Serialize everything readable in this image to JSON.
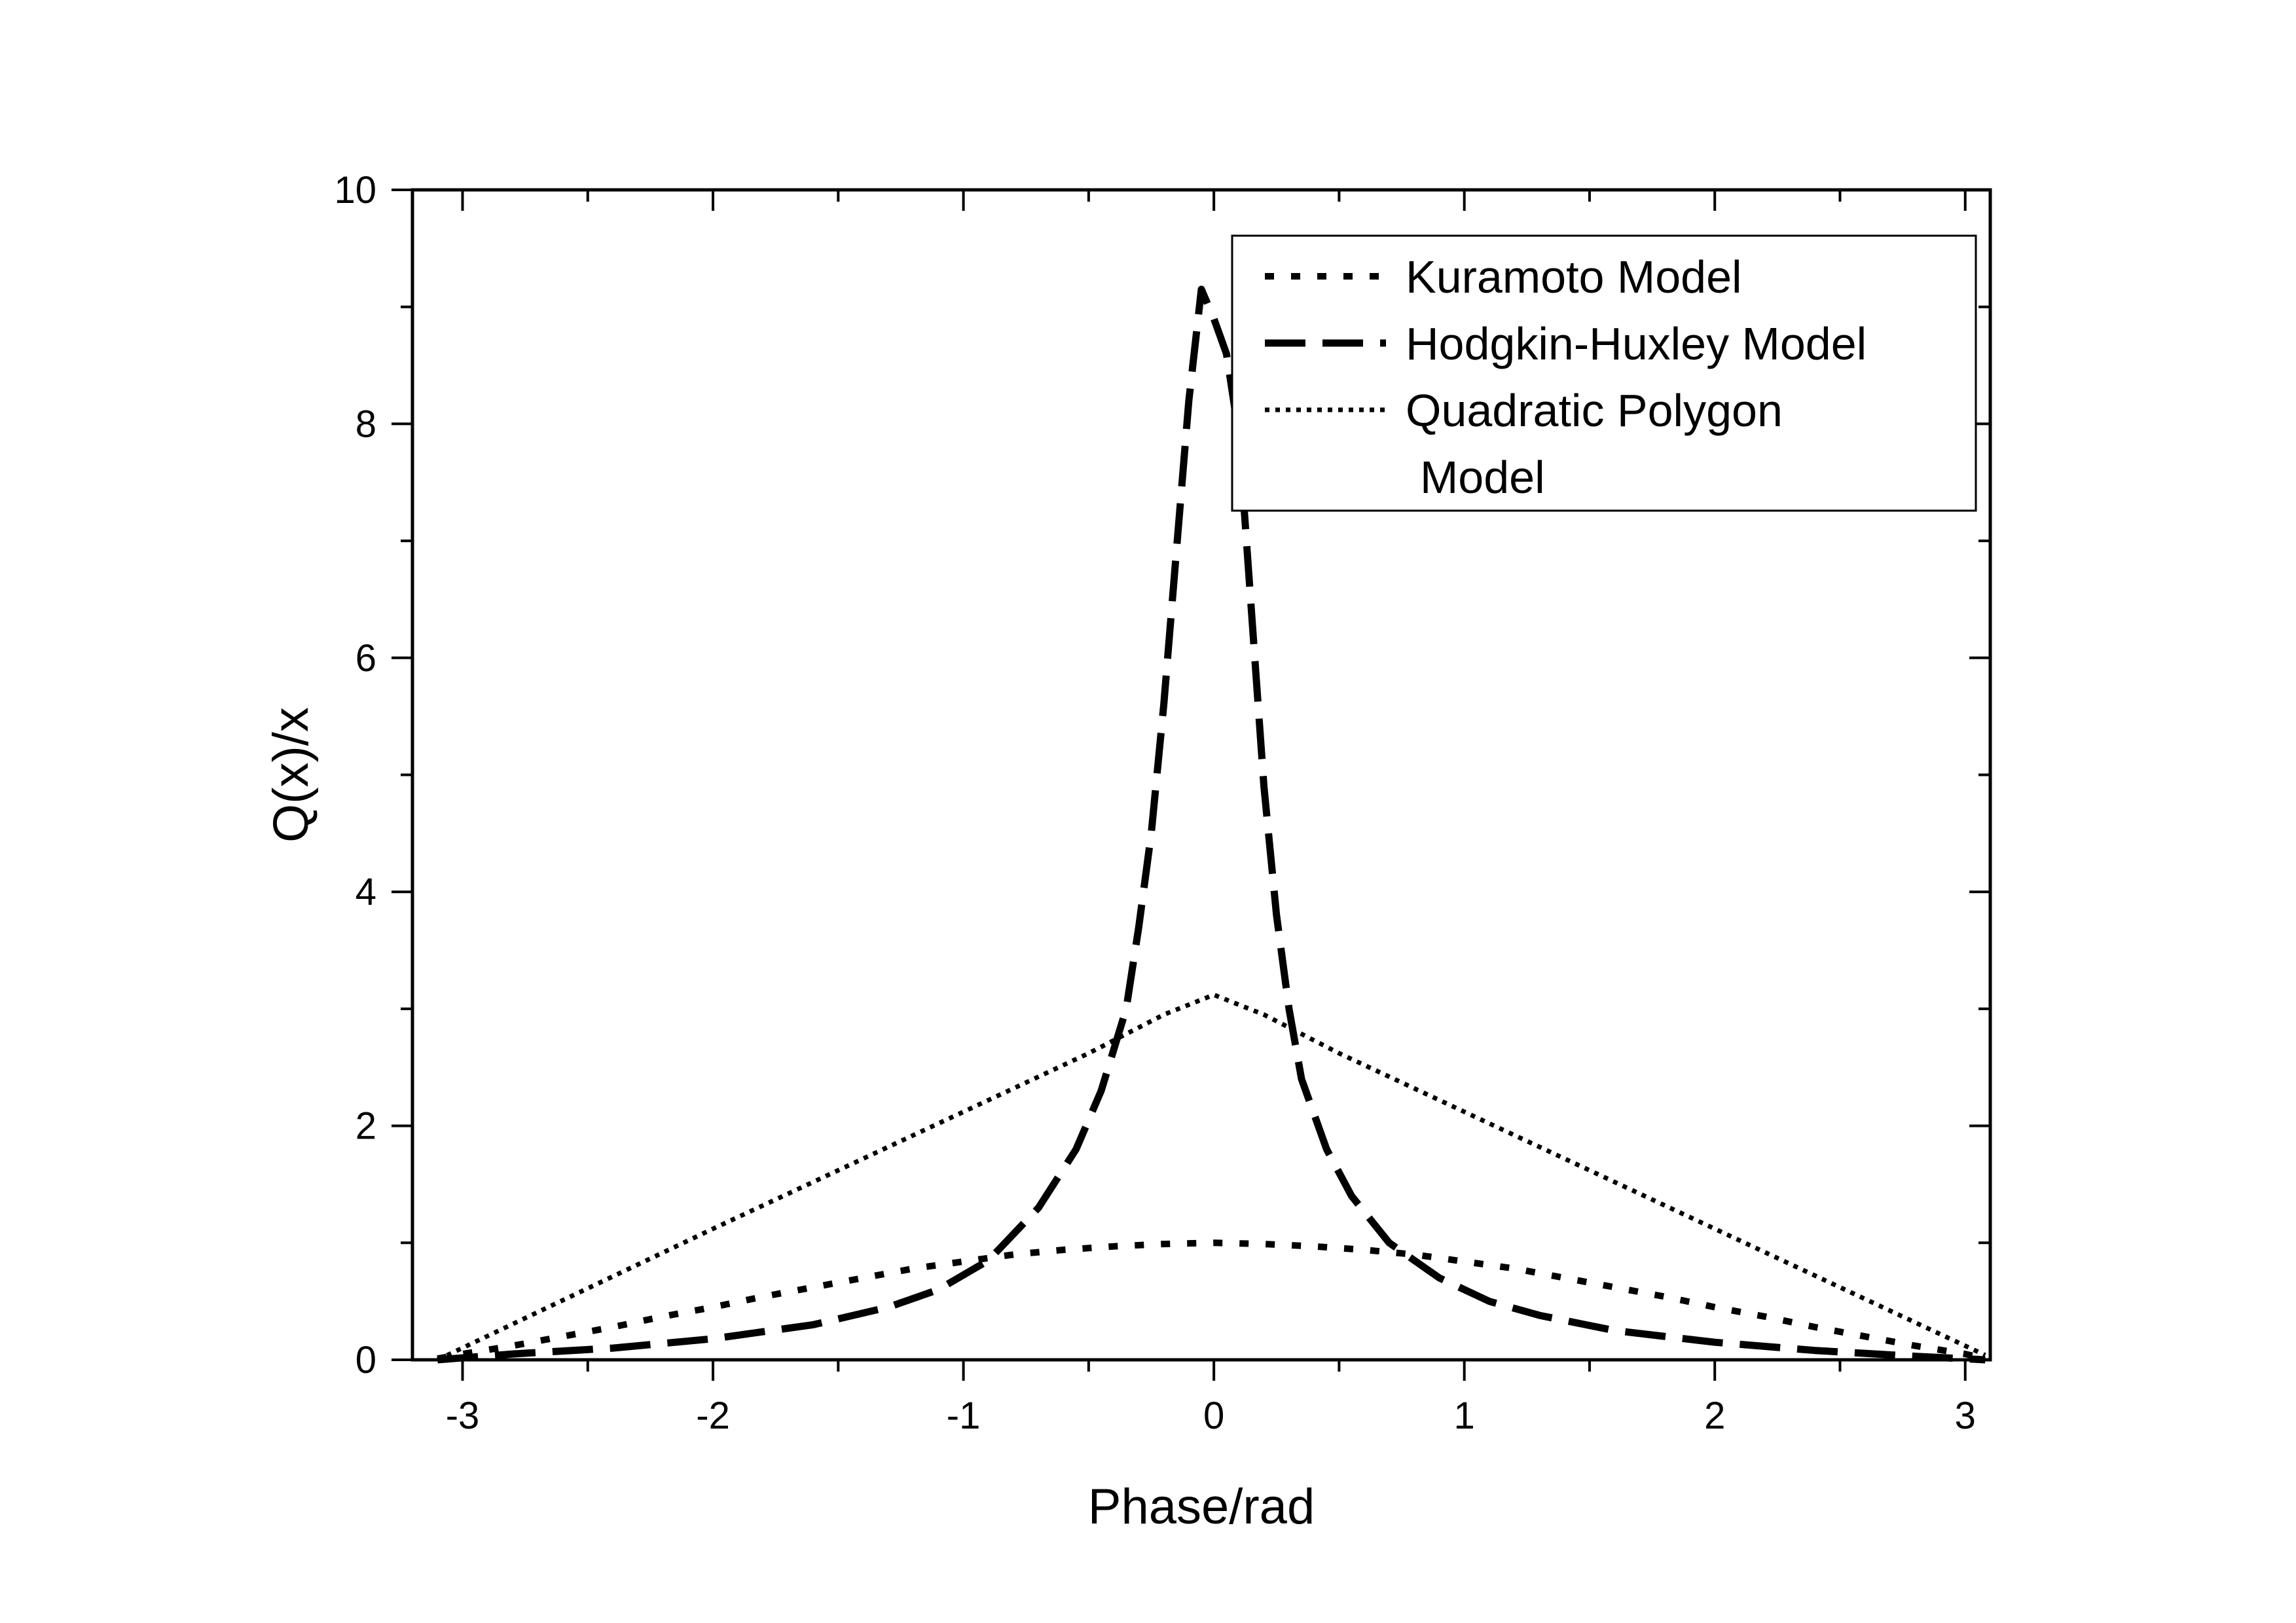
{
  "chart_data": {
    "type": "line",
    "title": "",
    "xlabel": "Phase/rad",
    "ylabel": "Q(x)/x",
    "xlim": [
      -3.2,
      3.1
    ],
    "ylim": [
      0,
      10
    ],
    "x_major_ticks": [
      -3,
      -2,
      -1,
      0,
      1,
      2,
      3
    ],
    "x_minor_ticks": [
      -2.5,
      -1.5,
      -0.5,
      0.5,
      1.5,
      2.5
    ],
    "y_major_ticks": [
      0,
      2,
      4,
      6,
      8,
      10
    ],
    "y_minor_ticks": [
      1,
      3,
      5,
      7,
      9
    ],
    "x_tick_labels": [
      "-3",
      "-2",
      "-1",
      "0",
      "1",
      "2",
      "3"
    ],
    "y_tick_labels": [
      "0",
      "2",
      "4",
      "6",
      "8",
      "10"
    ],
    "grid": false,
    "legend_position": "top-right",
    "series": [
      {
        "name": "Kuramoto Model",
        "line_style": "short-dash",
        "x": [
          -3.1,
          -3.0,
          -2.8,
          -2.6,
          -2.4,
          -2.2,
          -2.0,
          -1.8,
          -1.6,
          -1.4,
          -1.2,
          -1.0,
          -0.8,
          -0.6,
          -0.4,
          -0.2,
          0.0,
          0.2,
          0.4,
          0.6,
          0.8,
          1.0,
          1.2,
          1.4,
          1.6,
          1.8,
          2.0,
          2.2,
          2.4,
          2.6,
          2.8,
          3.0,
          3.08
        ],
        "y": [
          0.01,
          0.05,
          0.12,
          0.2,
          0.28,
          0.37,
          0.45,
          0.54,
          0.62,
          0.7,
          0.78,
          0.84,
          0.9,
          0.94,
          0.97,
          0.99,
          1.0,
          0.99,
          0.97,
          0.94,
          0.9,
          0.84,
          0.78,
          0.7,
          0.62,
          0.54,
          0.45,
          0.37,
          0.28,
          0.2,
          0.12,
          0.05,
          0.01
        ]
      },
      {
        "name": "Hodgkin-Huxley Model",
        "line_style": "long-dash",
        "x": [
          -3.1,
          -2.8,
          -2.4,
          -2.0,
          -1.6,
          -1.3,
          -1.1,
          -0.9,
          -0.7,
          -0.55,
          -0.45,
          -0.35,
          -0.3,
          -0.25,
          -0.2,
          -0.15,
          -0.1,
          -0.05,
          0.0,
          0.05,
          0.1,
          0.15,
          0.2,
          0.25,
          0.3,
          0.35,
          0.45,
          0.55,
          0.7,
          0.9,
          1.1,
          1.3,
          1.6,
          2.0,
          2.4,
          2.8,
          3.08
        ],
        "y": [
          0.0,
          0.05,
          0.1,
          0.18,
          0.3,
          0.45,
          0.6,
          0.85,
          1.3,
          1.8,
          2.3,
          3.0,
          3.7,
          4.5,
          5.6,
          6.9,
          8.2,
          9.15,
          8.9,
          8.6,
          7.9,
          6.4,
          4.9,
          3.8,
          3.0,
          2.4,
          1.8,
          1.4,
          1.0,
          0.7,
          0.5,
          0.38,
          0.25,
          0.15,
          0.08,
          0.03,
          0.0
        ]
      },
      {
        "name": "Quadratic Polygon\nModel",
        "legend_lines": [
          "Quadratic Polygon",
          "Model"
        ],
        "line_style": "dotted",
        "x": [
          -3.1,
          -2.0,
          -1.0,
          -0.5,
          -0.2,
          0.0,
          0.2,
          0.5,
          1.0,
          2.0,
          3.08
        ],
        "y": [
          0.0,
          1.12,
          2.12,
          2.62,
          2.95,
          3.12,
          2.95,
          2.62,
          2.12,
          1.12,
          0.04
        ]
      }
    ]
  }
}
